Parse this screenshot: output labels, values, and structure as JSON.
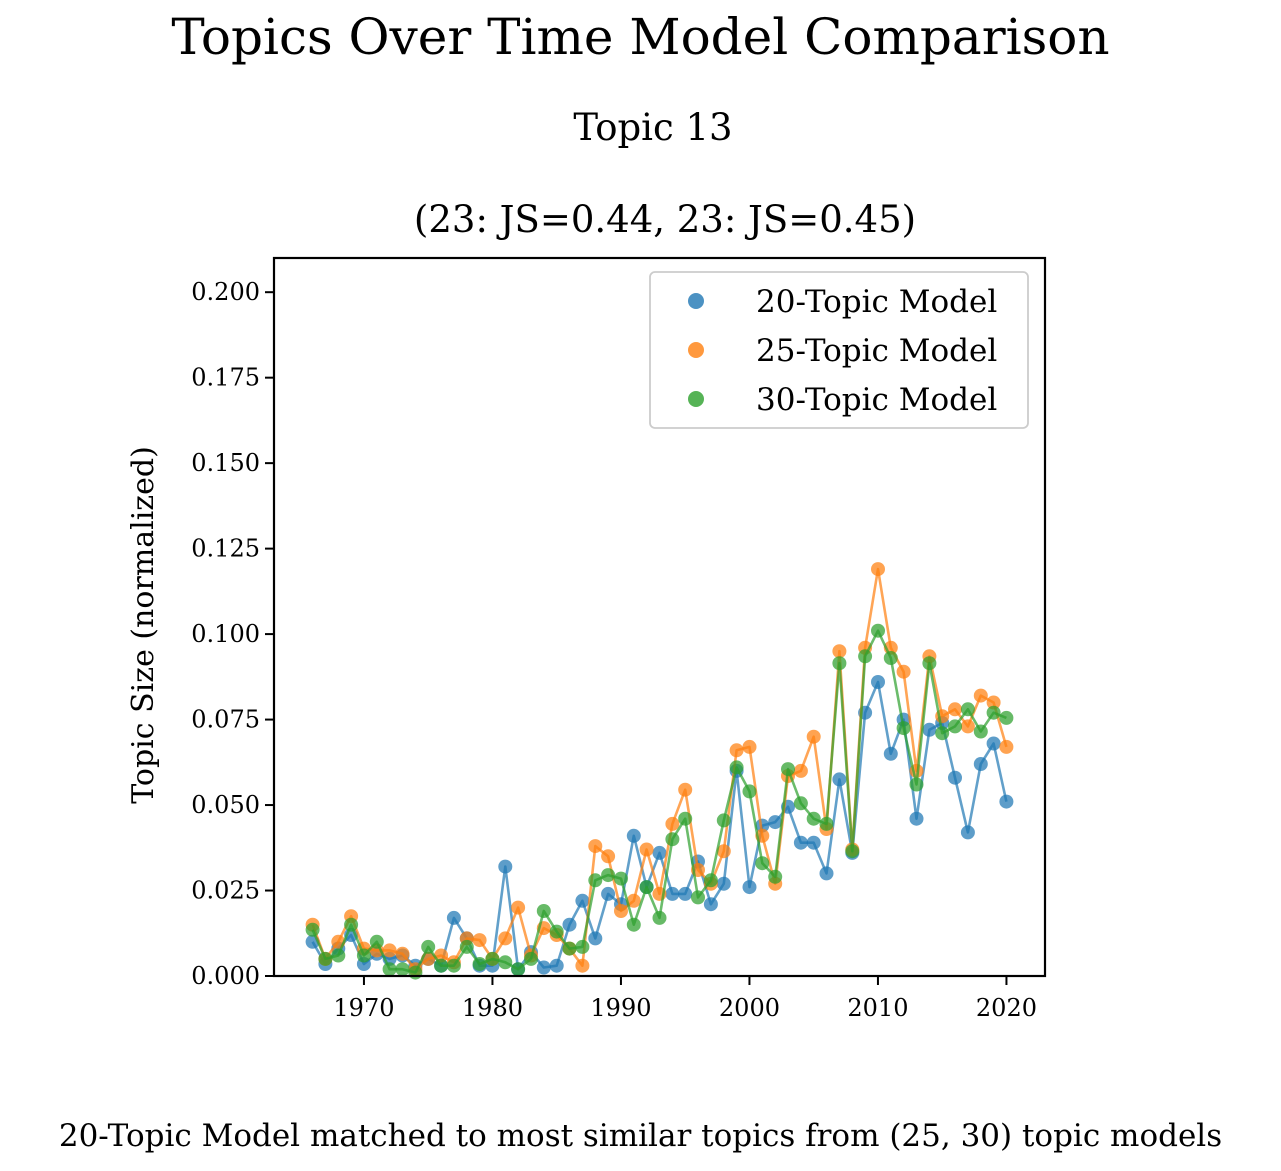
{
  "figure": {
    "title": "Topics Over Time Model Comparison",
    "subtitle": "Topic 13",
    "js_line": "(23: JS=0.44, 23: JS=0.45)",
    "caption": "20-Topic Model matched to most similar topics from (25, 30) topic models"
  },
  "chart_data": {
    "type": "scatter",
    "title": "(23: JS=0.44, 23: JS=0.45)",
    "xlabel": "",
    "ylabel": "Topic Size (normalized)",
    "xlim": [
      1963,
      2023
    ],
    "ylim": [
      0,
      0.21
    ],
    "xticks": [
      1970,
      1980,
      1990,
      2000,
      2010,
      2020
    ],
    "yticks": [
      0.0,
      0.025,
      0.05,
      0.075,
      0.1,
      0.125,
      0.15,
      0.175,
      0.2
    ],
    "ytick_labels": [
      "0.000",
      "0.025",
      "0.050",
      "0.075",
      "0.100",
      "0.125",
      "0.150",
      "0.175",
      "0.200"
    ],
    "grid": false,
    "legend_position": "top-right",
    "connected_lines": true,
    "x": [
      1966,
      1967,
      1968,
      1969,
      1970,
      1971,
      1972,
      1973,
      1974,
      1975,
      1976,
      1977,
      1978,
      1979,
      1980,
      1981,
      1982,
      1983,
      1984,
      1985,
      1986,
      1987,
      1988,
      1989,
      1990,
      1991,
      1992,
      1993,
      1994,
      1995,
      1996,
      1997,
      1998,
      1999,
      2000,
      2001,
      2002,
      2003,
      2004,
      2005,
      2006,
      2007,
      2008,
      2009,
      2010,
      2011,
      2012,
      2013,
      2014,
      2015,
      2016,
      2017,
      2018,
      2019,
      2020
    ],
    "series": [
      {
        "name": "20-Topic Model",
        "color": "#1f77b4",
        "values": [
          0.01,
          0.0035,
          0.008,
          0.012,
          0.0035,
          0.0065,
          0.005,
          0.006,
          0.003,
          0.005,
          0.003,
          0.017,
          0.011,
          0.003,
          0.003,
          0.032,
          0.002,
          0.007,
          0.0025,
          0.003,
          0.015,
          0.022,
          0.011,
          0.024,
          0.021,
          0.041,
          0.026,
          0.036,
          0.024,
          0.024,
          0.0335,
          0.021,
          0.027,
          0.06,
          0.026,
          0.044,
          0.045,
          0.0495,
          0.039,
          0.039,
          0.03,
          0.0575,
          0.036,
          0.077,
          0.086,
          0.065,
          0.075,
          0.046,
          0.072,
          0.074,
          0.058,
          0.042,
          0.062,
          0.068,
          0.051
        ]
      },
      {
        "name": "25-Topic Model",
        "color": "#ff7f0e",
        "values": [
          0.015,
          0.005,
          0.01,
          0.0175,
          0.008,
          0.0075,
          0.0075,
          0.0065,
          0.002,
          0.005,
          0.006,
          0.004,
          0.011,
          0.0105,
          0.005,
          0.011,
          0.02,
          0.006,
          0.014,
          0.012,
          0.008,
          0.003,
          0.038,
          0.035,
          0.019,
          0.022,
          0.037,
          0.024,
          0.0445,
          0.0545,
          0.031,
          0.027,
          0.0365,
          0.066,
          0.067,
          0.041,
          0.027,
          0.0585,
          0.06,
          0.07,
          0.043,
          0.095,
          0.037,
          0.096,
          0.119,
          0.096,
          0.089,
          0.06,
          0.0935,
          0.076,
          0.078,
          0.073,
          0.082,
          0.08,
          0.067
        ]
      },
      {
        "name": "30-Topic Model",
        "color": "#2ca02c",
        "values": [
          0.0135,
          0.005,
          0.006,
          0.015,
          0.006,
          0.01,
          0.002,
          0.002,
          0.001,
          0.0085,
          0.003,
          0.003,
          0.0085,
          0.0035,
          0.005,
          0.004,
          0.002,
          0.005,
          0.019,
          0.013,
          0.008,
          0.0085,
          0.028,
          0.0295,
          0.0285,
          0.015,
          0.026,
          0.017,
          0.04,
          0.046,
          0.023,
          0.028,
          0.0455,
          0.061,
          0.054,
          0.033,
          0.029,
          0.0605,
          0.0505,
          0.046,
          0.0445,
          0.0915,
          0.0365,
          0.0935,
          0.101,
          0.093,
          0.0725,
          0.056,
          0.0915,
          0.071,
          0.073,
          0.078,
          0.0715,
          0.077,
          0.0755
        ]
      }
    ]
  }
}
